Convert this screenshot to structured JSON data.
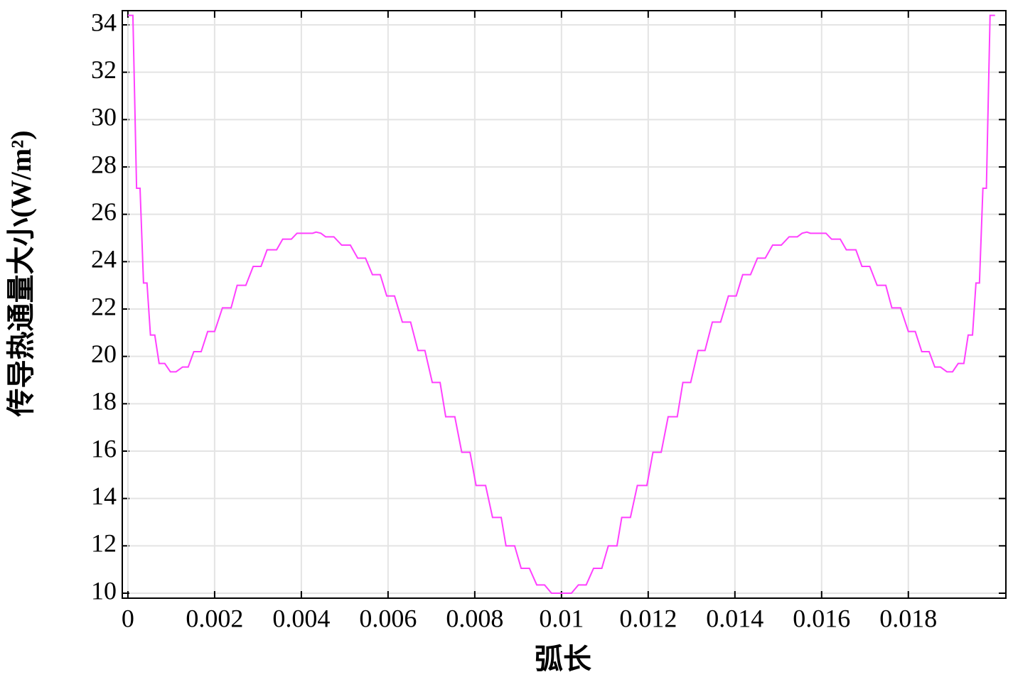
{
  "chart_data": {
    "type": "line",
    "xlabel": "弧长",
    "ylabel": "传导热通量大小(W/m²)",
    "x": [
      0,
      0.000115,
      0.0002,
      0.00028,
      0.00036,
      0.00044,
      0.00052,
      0.00062,
      0.00072,
      0.00085,
      0.00098,
      0.00111,
      0.00126,
      0.00139,
      0.00152,
      0.00169,
      0.00184,
      0.002,
      0.00218,
      0.00238,
      0.00252,
      0.00272,
      0.00289,
      0.00307,
      0.00321,
      0.00343,
      0.00357,
      0.00377,
      0.0039,
      0.00426,
      0.00434,
      0.00445,
      0.00456,
      0.00475,
      0.00493,
      0.00513,
      0.0053,
      0.00548,
      0.00564,
      0.00582,
      0.00597,
      0.00615,
      0.00633,
      0.00652,
      0.00669,
      0.00685,
      0.00702,
      0.0072,
      0.00733,
      0.00754,
      0.0077,
      0.00789,
      0.00803,
      0.00825,
      0.00841,
      0.00861,
      0.00872,
      0.00892,
      0.00907,
      0.00926,
      0.00943,
      0.00961,
      0.00977,
      0.01,
      0.01023,
      0.01039,
      0.01057,
      0.01074,
      0.01093,
      0.01108,
      0.01128,
      0.01139,
      0.01159,
      0.01175,
      0.01197,
      0.01211,
      0.0123,
      0.01246,
      0.01267,
      0.0128,
      0.01298,
      0.01315,
      0.01331,
      0.01348,
      0.01367,
      0.01385,
      0.01403,
      0.01418,
      0.01436,
      0.01452,
      0.0147,
      0.01487,
      0.01507,
      0.01525,
      0.01544,
      0.01555,
      0.01566,
      0.01574,
      0.0161,
      0.01623,
      0.01643,
      0.01657,
      0.01679,
      0.01693,
      0.01711,
      0.01728,
      0.01748,
      0.01762,
      0.01782,
      0.018,
      0.01816,
      0.01831,
      0.01848,
      0.01861,
      0.01874,
      0.01889,
      0.01902,
      0.01915,
      0.01928,
      0.01938,
      0.01948,
      0.01956,
      0.01964,
      0.01972,
      0.0198,
      0.019885,
      0.02
    ],
    "series": [
      {
        "color": "#ff40ff",
        "values": [
          34.4,
          34.4,
          27.1,
          27.1,
          23.1,
          23.1,
          20.9,
          20.9,
          19.7,
          19.7,
          19.35,
          19.35,
          19.55,
          19.55,
          20.2,
          20.2,
          21.05,
          21.05,
          22.05,
          22.05,
          23.0,
          23.0,
          23.8,
          23.8,
          24.5,
          24.5,
          24.95,
          24.95,
          25.2,
          25.2,
          25.25,
          25.2,
          25.05,
          25.05,
          24.7,
          24.7,
          24.15,
          24.15,
          23.45,
          23.45,
          22.55,
          22.55,
          21.45,
          21.45,
          20.25,
          20.25,
          18.9,
          18.9,
          17.45,
          17.45,
          15.95,
          15.95,
          14.55,
          14.55,
          13.2,
          13.2,
          12.0,
          12.0,
          11.05,
          11.05,
          10.35,
          10.35,
          10.0,
          10.0,
          10.0,
          10.35,
          10.35,
          11.05,
          11.05,
          12.0,
          12.0,
          13.2,
          13.2,
          14.55,
          14.55,
          15.95,
          15.95,
          17.45,
          17.45,
          18.9,
          18.9,
          20.25,
          20.25,
          21.45,
          21.45,
          22.55,
          22.55,
          23.45,
          23.45,
          24.15,
          24.15,
          24.7,
          24.7,
          25.05,
          25.05,
          25.2,
          25.25,
          25.2,
          25.2,
          24.95,
          24.95,
          24.5,
          24.5,
          23.8,
          23.8,
          23.0,
          23.0,
          22.05,
          22.05,
          21.05,
          21.05,
          20.2,
          20.2,
          19.55,
          19.55,
          19.35,
          19.35,
          19.7,
          19.7,
          20.9,
          20.9,
          23.1,
          23.1,
          27.1,
          27.1,
          34.4,
          34.4
        ]
      }
    ],
    "xlim": [
      -0.00013,
      0.02025
    ],
    "ylim": [
      9.79,
      34.6
    ],
    "xticks": [
      0,
      0.002,
      0.004,
      0.006,
      0.008,
      0.01,
      0.012,
      0.014,
      0.016,
      0.018
    ],
    "yticks": [
      10,
      12,
      14,
      16,
      18,
      20,
      22,
      24,
      26,
      28,
      30,
      32,
      34
    ],
    "grid": true
  }
}
